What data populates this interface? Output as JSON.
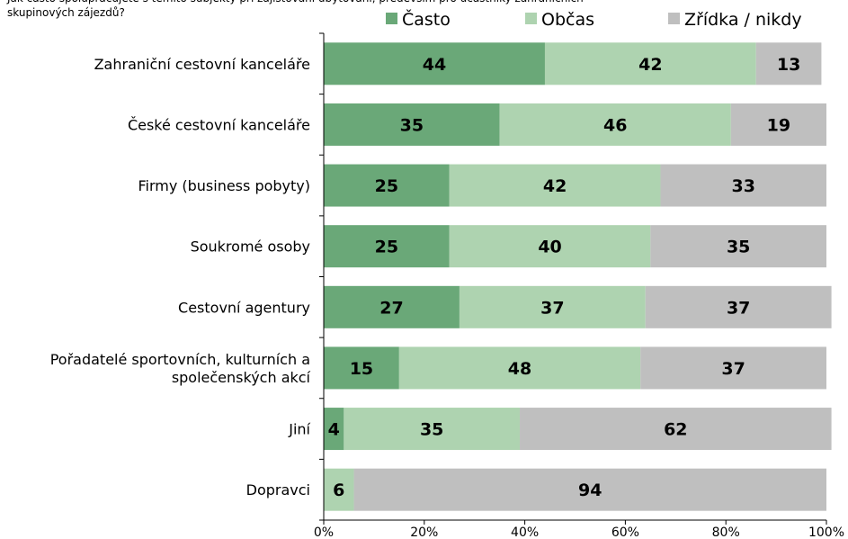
{
  "question": "Jak často spolupracujete s těmito subjekty při zajišťování ubytování, především pro účastníky zahraničních skupinových zájezdů?",
  "chart_data": {
    "type": "bar",
    "orientation": "horizontal",
    "stacked": "percent",
    "categories": [
      [
        "Zahraniční cestovní kanceláře"
      ],
      [
        "České cestovní kanceláře"
      ],
      [
        "Firmy (business pobyty)"
      ],
      [
        "Soukromé osoby"
      ],
      [
        "Cestovní agentury"
      ],
      [
        "Pořadatelé sportovních, kulturních a",
        "společenských akcí"
      ],
      [
        "Jiní"
      ],
      [
        "Dopravci"
      ]
    ],
    "series": [
      {
        "name": "Často",
        "color": "#6aa878",
        "values": [
          44,
          35,
          25,
          25,
          27,
          15,
          4,
          0
        ]
      },
      {
        "name": "Občas",
        "color": "#aed3b0",
        "values": [
          42,
          46,
          42,
          40,
          37,
          48,
          35,
          6
        ]
      },
      {
        "name": "Zřídka / nikdy",
        "color": "#bfbfbf",
        "values": [
          13,
          19,
          33,
          35,
          37,
          37,
          62,
          94
        ]
      }
    ],
    "xlim": [
      0,
      100
    ],
    "xticks": [
      "0%",
      "20%",
      "40%",
      "60%",
      "80%",
      "100%"
    ],
    "legend": "top",
    "grid": false
  }
}
